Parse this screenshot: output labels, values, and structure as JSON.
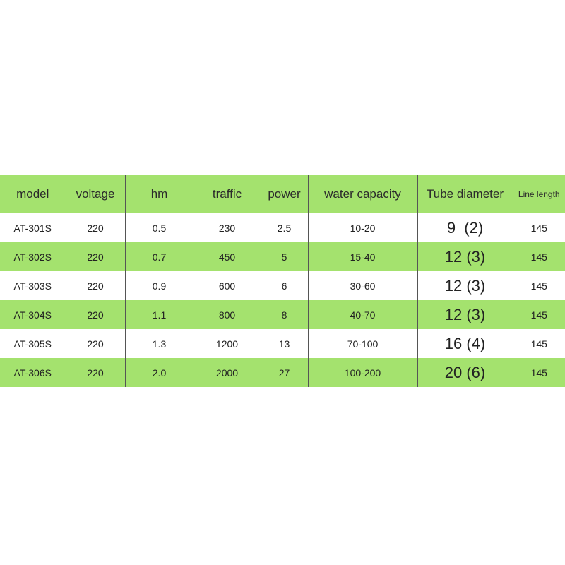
{
  "table": {
    "headers": [
      "model",
      "voltage",
      "hm",
      "traffic",
      "power",
      "water capacity",
      "Tube diameter",
      "Line length"
    ],
    "rows": [
      [
        "AT-301S",
        "220",
        "0.5",
        "230",
        "2.5",
        "10-20",
        "9  (2)",
        "145"
      ],
      [
        "AT-302S",
        "220",
        "0.7",
        "450",
        "5",
        "15-40",
        "12 (3)",
        "145"
      ],
      [
        "AT-303S",
        "220",
        "0.9",
        "600",
        "6",
        "30-60",
        "12 (3)",
        "145"
      ],
      [
        "AT-304S",
        "220",
        "1.1",
        "800",
        "8",
        "40-70",
        "12 (3)",
        "145"
      ],
      [
        "AT-305S",
        "220",
        "1.3",
        "1200",
        "13",
        "70-100",
        "16 (4)",
        "145"
      ],
      [
        "AT-306S",
        "220",
        "2.0",
        "2000",
        "27",
        "100-200",
        "20 (6)",
        "145"
      ]
    ]
  },
  "colors": {
    "row_green": "#a4e26e",
    "row_white": "#ffffff"
  }
}
